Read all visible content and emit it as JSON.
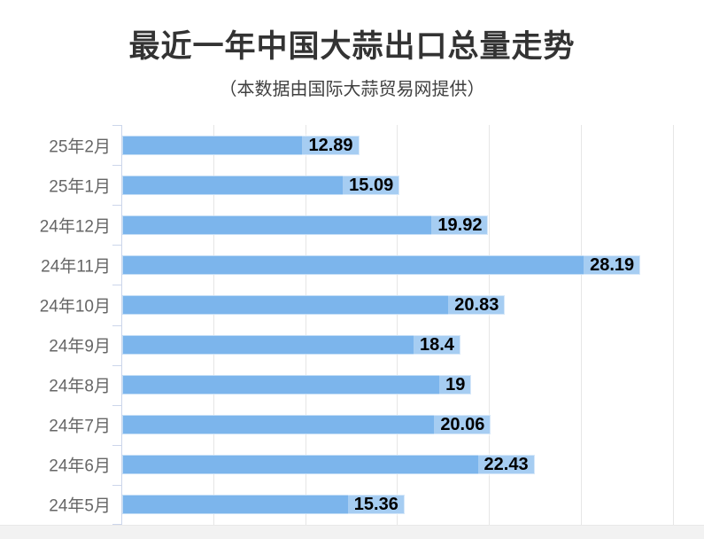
{
  "chart": {
    "title": "最近一年中国大蒜出口总量走势",
    "subtitle": "（本数据由国际大蒜贸易网提供）"
  },
  "chart_data": {
    "type": "bar",
    "orientation": "horizontal",
    "title": "最近一年中国大蒜出口总量走势",
    "subtitle": "（本数据由国际大蒜贸易网提供）",
    "categories": [
      "25年2月",
      "25年1月",
      "24年12月",
      "24年11月",
      "24年10月",
      "24年9月",
      "24年8月",
      "24年7月",
      "24年6月",
      "24年5月"
    ],
    "values": [
      12.89,
      15.09,
      19.92,
      28.19,
      20.83,
      18.4,
      19,
      20.06,
      22.43,
      15.36
    ],
    "value_labels": [
      "12.89",
      "15.09",
      "19.92",
      "28.19",
      "20.83",
      "18.4",
      "19",
      "20.06",
      "22.43",
      "15.36"
    ],
    "xlabel": "",
    "ylabel": "",
    "xlim": [
      0,
      31.7
    ],
    "gridline_values": [
      5,
      10,
      15,
      20,
      25,
      30
    ],
    "grid": "vertical-only",
    "legend": "none",
    "colors": {
      "bar": "#7cb5ec",
      "axis": "#ccd6eb",
      "gridline": "#e6e6e6",
      "category_label": "#666666",
      "value_label": "#000000",
      "title": "#333333",
      "subtitle": "#404040",
      "bottom_strip": "#f2f2f2"
    }
  }
}
